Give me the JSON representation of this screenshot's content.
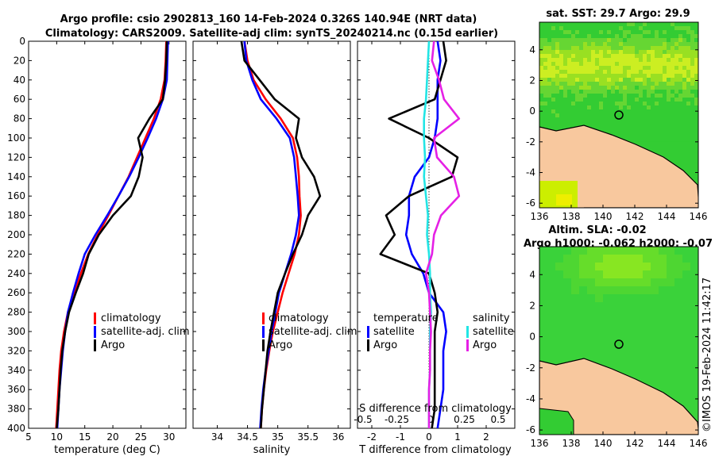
{
  "header": {
    "title_line1": "Argo profile: csio 2902813_160 14-Feb-2024 0.326S 140.94E (NRT data)",
    "title_line2": "Climatology: CARS2009. Satellite-adj clim: synTS_20240214.nc (0.15d earlier)"
  },
  "watermark": "©IMOS 19-Feb-2024 11:42:17",
  "colors": {
    "climatology": "#ff0000",
    "satellite": "#0000ff",
    "argo": "#000000",
    "sal_satellite": "#22e5e5",
    "sal_argo": "#e520e5",
    "land": "#f8c89e",
    "sea_green": "#33cc33"
  },
  "chart_data": [
    {
      "id": "temperature",
      "type": "line",
      "xlabel": "temperature (deg C)",
      "ylabel": "",
      "xlim": [
        5,
        33
      ],
      "ylim": [
        400,
        0
      ],
      "xticks": [
        5,
        10,
        15,
        20,
        25,
        30
      ],
      "yticks": [
        0,
        20,
        40,
        60,
        80,
        100,
        120,
        140,
        160,
        180,
        200,
        220,
        240,
        260,
        280,
        300,
        320,
        340,
        360,
        380,
        400
      ],
      "legend": [
        "climatology",
        "satellite-adj. clim",
        "Argo"
      ],
      "legend_position": "lower-right",
      "series": [
        {
          "name": "climatology",
          "color": "#ff0000",
          "x": [
            29.5,
            29.4,
            29.2,
            28.5,
            27.3,
            25.8,
            24.3,
            22.8,
            21.0,
            19.2,
            17.3,
            15.6,
            14.3,
            13.1,
            12.0,
            11.3,
            10.8,
            10.5,
            10.3,
            10.1,
            9.9
          ],
          "y": [
            0,
            20,
            40,
            60,
            80,
            100,
            120,
            140,
            160,
            180,
            200,
            220,
            240,
            260,
            280,
            300,
            320,
            340,
            360,
            380,
            400
          ]
        },
        {
          "name": "satellite-adj. clim",
          "color": "#0000ff",
          "x": [
            29.8,
            29.7,
            29.6,
            28.9,
            27.7,
            26.2,
            24.6,
            22.9,
            21.0,
            19.0,
            16.9,
            15.0,
            13.9,
            12.9,
            12.0,
            11.5,
            11.1,
            10.8,
            10.5,
            10.3,
            10.1
          ],
          "y": [
            0,
            20,
            40,
            60,
            80,
            100,
            120,
            140,
            160,
            180,
            200,
            220,
            240,
            260,
            280,
            300,
            320,
            340,
            360,
            380,
            400
          ]
        },
        {
          "name": "Argo",
          "color": "#000000",
          "x": [
            29.6,
            29.5,
            29.3,
            28.9,
            26.5,
            24.5,
            25.3,
            24.6,
            23.2,
            20.0,
            17.5,
            15.7,
            14.7,
            13.4,
            12.2,
            11.5,
            11.0,
            10.7,
            10.5,
            10.3,
            10.0
          ],
          "y": [
            0,
            20,
            40,
            60,
            80,
            100,
            120,
            140,
            160,
            180,
            200,
            220,
            240,
            260,
            280,
            300,
            320,
            340,
            360,
            380,
            400
          ]
        }
      ]
    },
    {
      "id": "salinity",
      "type": "line",
      "xlabel": "salinity",
      "xlim": [
        33.6,
        36.2
      ],
      "ylim": [
        400,
        0
      ],
      "xticks": [
        34,
        34.5,
        35,
        35.5,
        36
      ],
      "legend": [
        "climatology",
        "satellite-adj. clim",
        "Argo"
      ],
      "legend_position": "lower-right",
      "series": [
        {
          "name": "climatology",
          "color": "#ff0000",
          "x": [
            34.45,
            34.5,
            34.6,
            34.8,
            35.05,
            35.25,
            35.32,
            35.35,
            35.36,
            35.38,
            35.35,
            35.28,
            35.18,
            35.08,
            35.0,
            34.92,
            34.86,
            34.81,
            34.77,
            34.74,
            34.72
          ],
          "y": [
            0,
            20,
            40,
            60,
            80,
            100,
            120,
            140,
            160,
            180,
            200,
            220,
            240,
            260,
            280,
            300,
            320,
            340,
            360,
            380,
            400
          ]
        },
        {
          "name": "satellite-adj. clim",
          "color": "#0000ff",
          "x": [
            34.45,
            34.48,
            34.58,
            34.72,
            34.98,
            35.2,
            35.27,
            35.3,
            35.33,
            35.35,
            35.3,
            35.22,
            35.12,
            35.02,
            34.96,
            34.9,
            34.85,
            34.8,
            34.76,
            34.73,
            34.71
          ],
          "y": [
            0,
            20,
            40,
            60,
            80,
            100,
            120,
            140,
            160,
            180,
            200,
            220,
            240,
            260,
            280,
            300,
            320,
            340,
            360,
            380,
            400
          ]
        },
        {
          "name": "Argo",
          "color": "#000000",
          "x": [
            34.4,
            34.45,
            34.7,
            34.95,
            35.35,
            35.3,
            35.4,
            35.6,
            35.7,
            35.5,
            35.4,
            35.25,
            35.12,
            35.0,
            34.94,
            34.88,
            34.83,
            34.8,
            34.77,
            34.74,
            34.72
          ],
          "y": [
            0,
            20,
            40,
            60,
            80,
            100,
            120,
            140,
            160,
            180,
            200,
            220,
            240,
            260,
            280,
            300,
            320,
            340,
            360,
            380,
            400
          ]
        }
      ]
    },
    {
      "id": "differences",
      "type": "line",
      "xlabel": "T difference from climatology",
      "xlabel_top": "S difference from climatology",
      "xlim": [
        -2.5,
        3
      ],
      "ylim": [
        400,
        0
      ],
      "xticks": [
        -2,
        -1,
        0,
        1,
        2
      ],
      "xticks_S": [
        -0.5,
        -0.25,
        0,
        0.25,
        0.5
      ],
      "legend_T": {
        "title": "temperature",
        "items": [
          "satellite",
          "Argo"
        ]
      },
      "legend_S": {
        "title": "salinity",
        "items": [
          "satellite",
          "Argo"
        ]
      },
      "series": [
        {
          "name": "T satellite",
          "color": "#0000ff",
          "x": [
            0.3,
            0.4,
            0.3,
            0.3,
            0.3,
            0.2,
            0.0,
            -0.5,
            -0.7,
            -0.7,
            -0.8,
            -0.6,
            -0.2,
            0.0,
            0.5,
            0.6,
            0.5,
            0.5,
            0.5,
            0.4,
            0.3
          ],
          "y": [
            0,
            20,
            40,
            60,
            80,
            100,
            120,
            140,
            160,
            180,
            200,
            220,
            240,
            260,
            280,
            300,
            320,
            340,
            360,
            380,
            400
          ]
        },
        {
          "name": "T Argo",
          "color": "#000000",
          "x": [
            0.5,
            0.6,
            0.4,
            0.2,
            -1.4,
            0.0,
            1.0,
            0.8,
            -0.7,
            -1.5,
            -1.2,
            -1.7,
            0.0,
            0.2,
            0.3,
            0.2,
            0.2,
            0.2,
            0.2,
            0.2,
            0.1
          ],
          "y": [
            0,
            20,
            40,
            60,
            80,
            100,
            120,
            140,
            160,
            180,
            200,
            220,
            240,
            260,
            280,
            300,
            320,
            340,
            360,
            380,
            400
          ]
        },
        {
          "name": "S satellite",
          "color": "#22e5e5",
          "x": [
            0.0,
            -0.01,
            -0.02,
            -0.03,
            -0.05,
            -0.05,
            -0.04,
            -0.05,
            -0.03,
            -0.01,
            -0.02,
            0.0,
            0.01,
            0.01,
            0.02,
            0.01,
            0.01,
            0.01,
            0.0,
            0.0,
            0.0
          ],
          "y": [
            0,
            20,
            40,
            60,
            80,
            100,
            120,
            140,
            160,
            180,
            200,
            220,
            240,
            260,
            280,
            300,
            320,
            340,
            360,
            380,
            400
          ]
        },
        {
          "name": "S Argo",
          "color": "#e520e5",
          "x": [
            0.05,
            0.03,
            0.1,
            0.15,
            0.3,
            0.05,
            0.08,
            0.25,
            0.3,
            0.12,
            0.05,
            0.03,
            -0.03,
            0.0,
            0.01,
            0.02,
            0.01,
            0.01,
            0.0,
            0.0,
            0.0
          ],
          "y": [
            0,
            20,
            40,
            60,
            80,
            100,
            120,
            140,
            160,
            180,
            200,
            220,
            240,
            260,
            280,
            300,
            320,
            340,
            360,
            380,
            400
          ]
        }
      ]
    },
    {
      "id": "sst_map",
      "type": "heatmap",
      "title": "sat. SST: 29.7 Argo: 29.9",
      "xlim": [
        136,
        146
      ],
      "ylim": [
        -6.3,
        5.8
      ],
      "xticks": [
        136,
        138,
        140,
        142,
        144,
        146
      ],
      "yticks": [
        -6,
        -4,
        -2,
        0,
        2,
        4
      ],
      "argo_position": {
        "lon": 140.94,
        "lat": -0.33
      }
    },
    {
      "id": "sla_map",
      "type": "heatmap",
      "title_line1": "Altim. SLA: -0.02",
      "title_line2": "Argo h1000: -0.062 h2000: -0.07",
      "xlim": [
        136,
        146
      ],
      "ylim": [
        -6.3,
        5.8
      ],
      "xticks": [
        136,
        138,
        140,
        142,
        144,
        146
      ],
      "yticks": [
        -6,
        -4,
        -2,
        0,
        2,
        4
      ],
      "argo_position": {
        "lon": 140.94,
        "lat": -0.33
      }
    }
  ]
}
